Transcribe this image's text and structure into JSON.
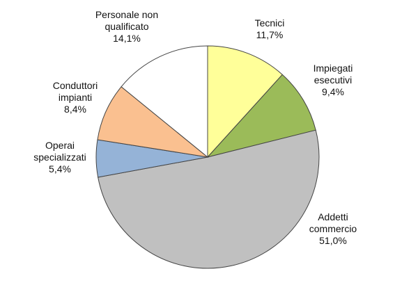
{
  "chart_data": {
    "type": "pie",
    "categories": [
      "Tecnici",
      "Impiegati esecutivi",
      "Addetti commercio",
      "Operai specializzati",
      "Conduttori impianti",
      "Personale non qualificato"
    ],
    "values": [
      11.7,
      9.4,
      51.0,
      5.4,
      8.4,
      14.1
    ],
    "value_labels": [
      "11,7%",
      "9,4%",
      "51,0%",
      "5,4%",
      "8,4%",
      "14,1%"
    ],
    "label_lines": [
      [
        "Tecnici"
      ],
      [
        "Impiegati",
        "esecutivi"
      ],
      [
        "Addetti",
        "commercio"
      ],
      [
        "Operai",
        "specializzati"
      ],
      [
        "Conduttori",
        "impianti"
      ],
      [
        "Personale non",
        "qualificato"
      ]
    ],
    "colors": [
      "#ffff99",
      "#9bbb59",
      "#c0c0c0",
      "#95b3d7",
      "#fac090",
      "#ffffff"
    ],
    "start": "12 o'clock, clockwise",
    "legend": "none"
  }
}
